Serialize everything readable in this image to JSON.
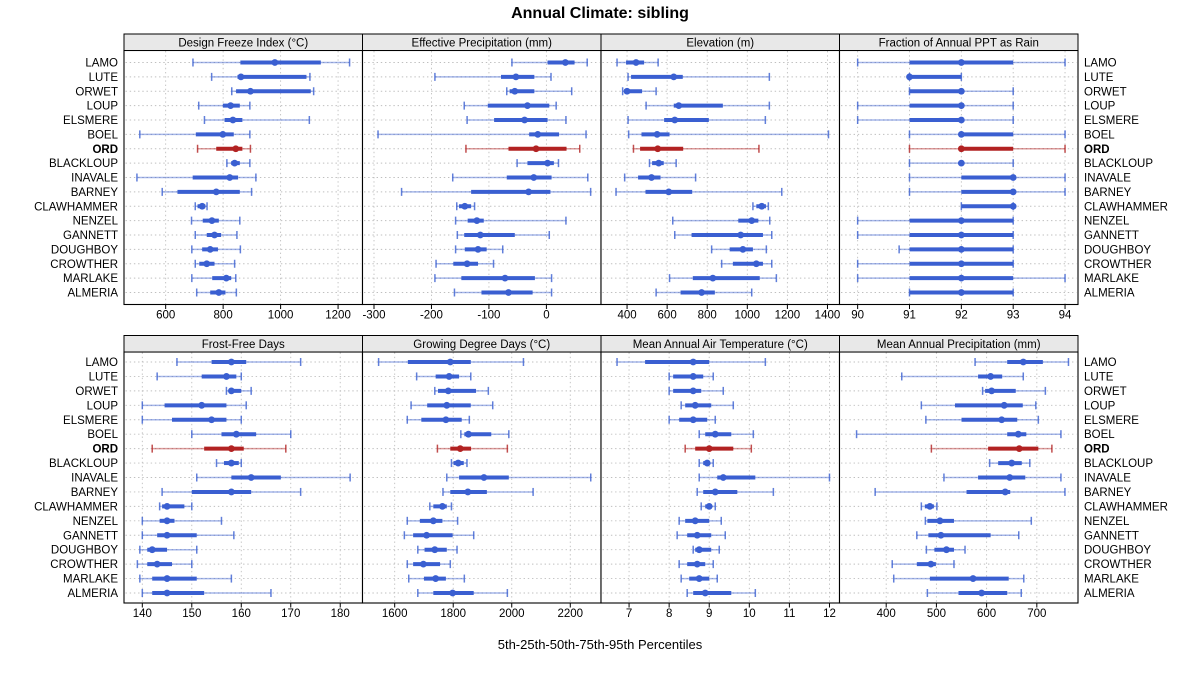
{
  "title": "Annual Climate: sibling",
  "footer": "5th-25th-50th-75th-95th Percentiles",
  "percentiles": [
    "5th",
    "25th",
    "50th",
    "75th",
    "95th"
  ],
  "sites": [
    "LAMO",
    "LUTE",
    "ORWET",
    "LOUP",
    "ELSMERE",
    "BOEL",
    "ORD",
    "BLACKLOUP",
    "INAVALE",
    "BARNEY",
    "CLAWHAMMER",
    "NENZEL",
    "GANNETT",
    "DOUGHBOY",
    "CROWTHER",
    "MARLAKE",
    "ALMERIA"
  ],
  "highlighted_site": "ORD",
  "colors": {
    "series": "#3A5FD1",
    "highlight": "#B22222",
    "strip_bg": "#E8E8E8",
    "grid": "#BFBFBF",
    "border": "#000000",
    "text": "#000000"
  },
  "chart_data": {
    "type": "percentile-interval-dotplot",
    "layout": "2 rows x 4 columns, shared site axis, row guides dotted, grid dotted",
    "panels": [
      {
        "title": "Design Freeze Index (°C)",
        "block": "top",
        "xlim": [
          455,
          1285
        ],
        "ticks": [
          600,
          800,
          1000,
          1200
        ],
        "values": [
          [
            695,
            860,
            980,
            1140,
            1240
          ],
          [
            760,
            850,
            862,
            1090,
            1102
          ],
          [
            830,
            845,
            895,
            1105,
            1115
          ],
          [
            715,
            799,
            826,
            858,
            893
          ],
          [
            735,
            805,
            834,
            867,
            1100
          ],
          [
            510,
            705,
            799,
            837,
            893
          ],
          [
            711,
            776,
            844,
            867,
            895
          ],
          [
            813,
            828,
            840,
            858,
            893
          ],
          [
            500,
            694,
            823,
            852,
            914
          ],
          [
            588,
            641,
            776,
            858,
            899
          ],
          [
            703,
            711,
            727,
            738,
            744
          ],
          [
            690,
            729,
            761,
            785,
            858
          ],
          [
            703,
            743,
            770,
            793,
            848
          ],
          [
            691,
            727,
            755,
            782,
            860
          ],
          [
            703,
            717,
            743,
            770,
            840
          ],
          [
            691,
            762,
            811,
            828,
            844
          ],
          [
            708,
            755,
            785,
            808,
            846
          ]
        ]
      },
      {
        "title": "Effective Precipitation (mm)",
        "block": "top",
        "xlim": [
          -320,
          95
        ],
        "ticks": [
          -300,
          -200,
          -100,
          0
        ],
        "values": [
          [
            -60,
            2,
            33,
            49,
            71
          ],
          [
            -194,
            -79,
            -53,
            -21,
            8
          ],
          [
            -69,
            -64,
            -55,
            -21,
            44
          ],
          [
            -143,
            -102,
            -33,
            5,
            17
          ],
          [
            -138,
            -91,
            -38,
            2,
            34
          ],
          [
            -293,
            -30,
            -15,
            22,
            69
          ],
          [
            -140,
            -66,
            -18,
            35,
            58
          ],
          [
            -51,
            -33,
            2,
            13,
            21
          ],
          [
            -163,
            -69,
            -22,
            9,
            72
          ],
          [
            -252,
            -131,
            -31,
            7,
            77
          ],
          [
            -156,
            -152,
            -142,
            -131,
            -125
          ],
          [
            -158,
            -137,
            -121,
            -109,
            34
          ],
          [
            -155,
            -143,
            -115,
            -55,
            5
          ],
          [
            -158,
            -142,
            -119,
            -104,
            -76
          ],
          [
            -192,
            -162,
            -138,
            -119,
            -92
          ],
          [
            -194,
            -148,
            -72,
            -20,
            9
          ],
          [
            -160,
            -113,
            -66,
            -24,
            9
          ]
        ]
      },
      {
        "title": "Elevation (m)",
        "block": "top",
        "xlim": [
          270,
          1460
        ],
        "ticks": [
          400,
          600,
          800,
          1000,
          1200,
          1400
        ],
        "values": [
          [
            350,
            395,
            445,
            485,
            555
          ],
          [
            405,
            420,
            633,
            678,
            1110
          ],
          [
            378,
            385,
            400,
            475,
            545
          ],
          [
            495,
            633,
            658,
            878,
            1110
          ],
          [
            405,
            585,
            638,
            808,
            1090
          ],
          [
            408,
            472,
            550,
            612,
            1405
          ],
          [
            432,
            465,
            553,
            680,
            1058
          ],
          [
            512,
            525,
            558,
            583,
            645
          ],
          [
            388,
            455,
            522,
            567,
            742
          ],
          [
            345,
            492,
            608,
            725,
            1172
          ],
          [
            1028,
            1045,
            1072,
            1093,
            1105
          ],
          [
            628,
            955,
            1022,
            1055,
            1112
          ],
          [
            638,
            722,
            967,
            1078,
            1122
          ],
          [
            822,
            912,
            978,
            1028,
            1095
          ],
          [
            872,
            928,
            1045,
            1078,
            1122
          ],
          [
            612,
            728,
            828,
            1062,
            1145
          ],
          [
            545,
            667,
            772,
            838,
            1022
          ]
        ]
      },
      {
        "title": "Fraction of Annual PPT as Rain",
        "block": "top",
        "xlim": [
          89.65,
          94.25
        ],
        "ticks": [
          90,
          91,
          92,
          93,
          94
        ],
        "values": [
          [
            90,
            91,
            92,
            93,
            94
          ],
          [
            91,
            91,
            91,
            92,
            92
          ],
          [
            91,
            91,
            92,
            92,
            93
          ],
          [
            90,
            91,
            92,
            92,
            93
          ],
          [
            90,
            91,
            92,
            92,
            93
          ],
          [
            91,
            92,
            92,
            93,
            94
          ],
          [
            91,
            92,
            92,
            93,
            94
          ],
          [
            91,
            92,
            92,
            92,
            93
          ],
          [
            91,
            92,
            93,
            93,
            94
          ],
          [
            91,
            92,
            93,
            93,
            94
          ],
          [
            92,
            92,
            93,
            93,
            93
          ],
          [
            90,
            91,
            92,
            93,
            93
          ],
          [
            90,
            91,
            92,
            93,
            93
          ],
          [
            90.8,
            91,
            92,
            93,
            93
          ],
          [
            90,
            91,
            92,
            93,
            93
          ],
          [
            90,
            91,
            92,
            93,
            94
          ],
          [
            91,
            91,
            92,
            93,
            93
          ]
        ]
      },
      {
        "title": "Frost-Free Days",
        "block": "bottom",
        "xlim": [
          136.3,
          184.5
        ],
        "ticks": [
          140,
          150,
          160,
          170,
          180
        ],
        "values": [
          [
            147,
            154,
            158,
            161,
            172
          ],
          [
            143,
            152,
            157,
            159,
            160
          ],
          [
            157,
            157.5,
            158,
            160,
            162
          ],
          [
            140,
            144.5,
            152,
            157,
            161
          ],
          [
            140,
            146,
            154,
            157,
            160
          ],
          [
            150,
            156,
            159,
            163,
            170
          ],
          [
            142,
            152.5,
            158,
            160.5,
            169
          ],
          [
            155,
            156.5,
            158,
            159.5,
            160
          ],
          [
            151,
            158,
            162,
            168,
            182
          ],
          [
            144,
            150,
            158,
            162,
            172
          ],
          [
            143.5,
            144,
            145,
            148.5,
            150
          ],
          [
            140,
            143.5,
            145,
            146.5,
            156
          ],
          [
            140,
            143,
            145,
            151,
            158.5
          ],
          [
            139.5,
            141,
            142,
            145,
            151
          ],
          [
            139,
            141,
            143,
            146,
            150
          ],
          [
            139.5,
            142,
            145,
            151,
            158
          ],
          [
            140,
            142,
            145,
            152.5,
            166
          ]
        ]
      },
      {
        "title": "Growing Degree Days (°C)",
        "block": "bottom",
        "xlim": [
          1490,
          2305
        ],
        "ticks": [
          1600,
          1800,
          2000,
          2200
        ],
        "values": [
          [
            1545,
            1645,
            1790,
            1860,
            2040
          ],
          [
            1675,
            1740,
            1786,
            1820,
            1860
          ],
          [
            1737,
            1748,
            1783,
            1878,
            1920
          ],
          [
            1656,
            1711,
            1778,
            1860,
            1935
          ],
          [
            1643,
            1691,
            1775,
            1829,
            1855
          ],
          [
            1826,
            1838,
            1852,
            1930,
            1990
          ],
          [
            1746,
            1790,
            1824,
            1861,
            1985
          ],
          [
            1794,
            1801,
            1817,
            1836,
            1847
          ],
          [
            1778,
            1820,
            1905,
            1990,
            2270
          ],
          [
            1765,
            1790,
            1850,
            1915,
            2073
          ],
          [
            1720,
            1732,
            1763,
            1778,
            1794
          ],
          [
            1643,
            1686,
            1732,
            1763,
            1815
          ],
          [
            1633,
            1663,
            1709,
            1798,
            1870
          ],
          [
            1679,
            1702,
            1737,
            1778,
            1813
          ],
          [
            1643,
            1663,
            1698,
            1755,
            1790
          ],
          [
            1648,
            1700,
            1740,
            1775,
            1838
          ],
          [
            1679,
            1732,
            1798,
            1870,
            1985
          ]
        ]
      },
      {
        "title": "Mean Annual Air Temperature (°C)",
        "block": "bottom",
        "xlim": [
          6.3,
          12.25
        ],
        "ticks": [
          7,
          8,
          9,
          10,
          11,
          12
        ],
        "values": [
          [
            6.7,
            7.4,
            8.6,
            9.0,
            10.4
          ],
          [
            8.0,
            8.1,
            8.6,
            8.85,
            9.1
          ],
          [
            8.0,
            8.1,
            8.6,
            8.8,
            9.35
          ],
          [
            8.3,
            8.4,
            8.65,
            9.05,
            9.6
          ],
          [
            8.0,
            8.25,
            8.6,
            8.95,
            9.15
          ],
          [
            8.75,
            8.9,
            9.15,
            9.55,
            10.1
          ],
          [
            8.4,
            8.65,
            9.0,
            9.6,
            10.05
          ],
          [
            8.75,
            8.85,
            8.95,
            9.0,
            9.1
          ],
          [
            8.75,
            9.2,
            9.35,
            10.15,
            12.0
          ],
          [
            8.7,
            8.85,
            9.15,
            9.7,
            10.6
          ],
          [
            8.8,
            8.9,
            9.0,
            9.05,
            9.15
          ],
          [
            8.25,
            8.4,
            8.65,
            9.0,
            9.3
          ],
          [
            8.2,
            8.45,
            8.7,
            9.05,
            9.4
          ],
          [
            8.6,
            8.65,
            8.75,
            9.05,
            9.25
          ],
          [
            8.25,
            8.45,
            8.7,
            8.9,
            9.1
          ],
          [
            8.3,
            8.5,
            8.75,
            9.0,
            9.2
          ],
          [
            8.45,
            8.6,
            8.9,
            9.55,
            10.15
          ]
        ]
      },
      {
        "title": "Mean Annual Precipitation (mm)",
        "block": "bottom",
        "xlim": [
          307,
          782
        ],
        "ticks": [
          400,
          500,
          600,
          700
        ],
        "values": [
          [
            577,
            641,
            673,
            712,
            763
          ],
          [
            431,
            583,
            608,
            631,
            673
          ],
          [
            592,
            597,
            610,
            658,
            717
          ],
          [
            470,
            537,
            635,
            672,
            698
          ],
          [
            479,
            550,
            630,
            661,
            703
          ],
          [
            341,
            641,
            663,
            679,
            748
          ],
          [
            490,
            603,
            665,
            703,
            730
          ],
          [
            606,
            623,
            650,
            670,
            686
          ],
          [
            515,
            583,
            646,
            677,
            748
          ],
          [
            378,
            560,
            637,
            647,
            756
          ],
          [
            470,
            477,
            487,
            495,
            501
          ],
          [
            478,
            482,
            507,
            535,
            689
          ],
          [
            461,
            484,
            509,
            608,
            664
          ],
          [
            480,
            496,
            520,
            535,
            557
          ],
          [
            412,
            461,
            489,
            499,
            535
          ],
          [
            415,
            487,
            573,
            644,
            674
          ],
          [
            482,
            544,
            590,
            641,
            669
          ]
        ]
      }
    ]
  }
}
